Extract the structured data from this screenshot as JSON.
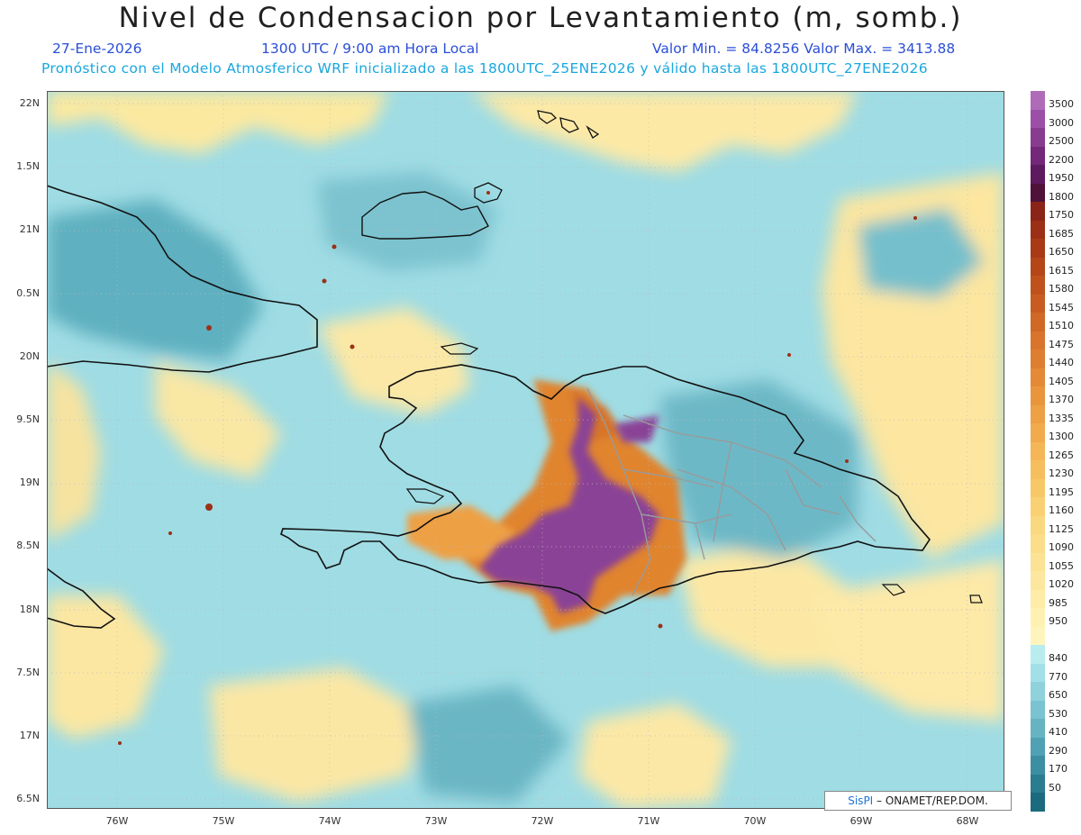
{
  "title": "Nivel de Condensacion por Levantamiento (m, somb.)",
  "date": "27-Ene-2026",
  "time": "1300 UTC / 9:00 am Hora Local",
  "value_range": "Valor Min. = 84.8256  Valor Max. = 3413.88",
  "info": "Pronóstico con el Modelo Atmosferico WRF inicializado a las 1800UTC_25ENE2026 y válido hasta las  1800UTC_27ENE2026",
  "lat_labels": [
    "22N",
    "1.5N",
    "21N",
    "0.5N",
    "20N",
    "9.5N",
    "19N",
    "8.5N",
    "18N",
    "7.5N",
    "17N",
    "6.5N"
  ],
  "lon_labels": [
    "76W",
    "75W",
    "74W",
    "73W",
    "72W",
    "71W",
    "70W",
    "69W",
    "68W"
  ],
  "colorbar": {
    "levels": [
      {
        "label": "3500",
        "color": "#b06bb8"
      },
      {
        "label": "3000",
        "color": "#9c4fa6"
      },
      {
        "label": "2500",
        "color": "#873c90"
      },
      {
        "label": "2200",
        "color": "#73287a"
      },
      {
        "label": "1950",
        "color": "#5e1a5e"
      },
      {
        "label": "1800",
        "color": "#4f1238"
      },
      {
        "label": "1750",
        "color": "#8b2418"
      },
      {
        "label": "1685",
        "color": "#9c3016"
      },
      {
        "label": "1650",
        "color": "#a83a16"
      },
      {
        "label": "1615",
        "color": "#b54618"
      },
      {
        "label": "1580",
        "color": "#bf521c"
      },
      {
        "label": "1545",
        "color": "#c85c20"
      },
      {
        "label": "1510",
        "color": "#d06826"
      },
      {
        "label": "1475",
        "color": "#d8742c"
      },
      {
        "label": "1440",
        "color": "#de7e30"
      },
      {
        "label": "1405",
        "color": "#e48a36"
      },
      {
        "label": "1370",
        "color": "#e9953c"
      },
      {
        "label": "1335",
        "color": "#eda044"
      },
      {
        "label": "1300",
        "color": "#f1ab4c"
      },
      {
        "label": "1265",
        "color": "#f4b656"
      },
      {
        "label": "1230",
        "color": "#f6bf5e"
      },
      {
        "label": "1195",
        "color": "#f8c868"
      },
      {
        "label": "1160",
        "color": "#f9d174"
      },
      {
        "label": "1125",
        "color": "#fad880"
      },
      {
        "label": "1090",
        "color": "#fbdd8a"
      },
      {
        "label": "1055",
        "color": "#fce294"
      },
      {
        "label": "1020",
        "color": "#fde79e"
      },
      {
        "label": "985",
        "color": "#feeca8"
      },
      {
        "label": "950",
        "color": "#fff1b2"
      },
      {
        "label": "",
        "color": "#fff5bc"
      },
      {
        "label": "840",
        "color": "#b9ecee"
      },
      {
        "label": "770",
        "color": "#a3dfe6"
      },
      {
        "label": "650",
        "color": "#8fd2dc"
      },
      {
        "label": "530",
        "color": "#7bc3d0"
      },
      {
        "label": "410",
        "color": "#66b3c2"
      },
      {
        "label": "290",
        "color": "#50a1b3"
      },
      {
        "label": "170",
        "color": "#3c8fa2"
      },
      {
        "label": "50",
        "color": "#2a7c90"
      },
      {
        "label": "",
        "color": "#1c6a7e"
      }
    ]
  },
  "credit": {
    "brand": "SisPI",
    "text": "– ONAMET/REP.DOM."
  }
}
